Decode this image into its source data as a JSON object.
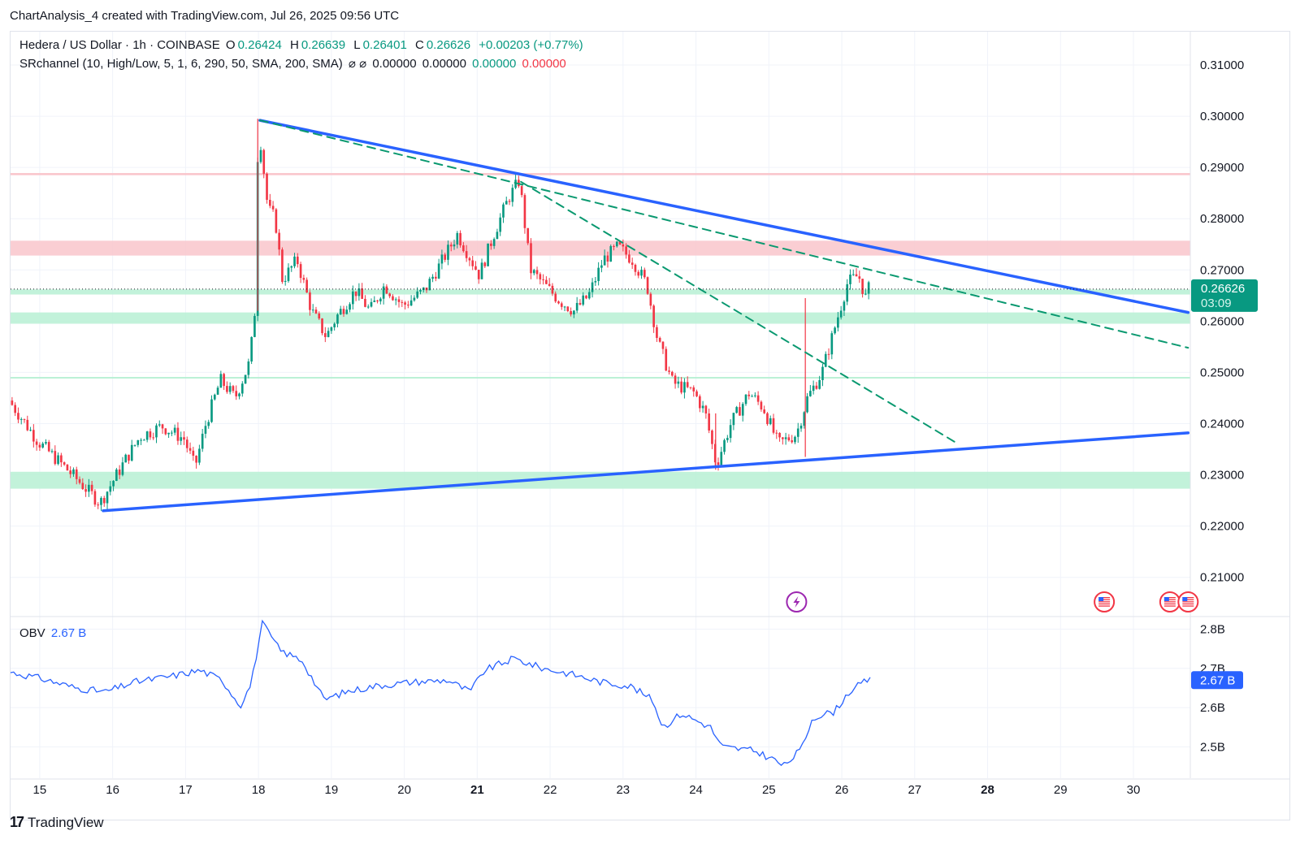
{
  "header": {
    "caption": "ChartAnalysis_4 created with TradingView.com, Jul 26, 2025 09:56 UTC"
  },
  "legend": {
    "symbol": "Hedera / US Dollar · 1h · COINBASE",
    "o_label": "O",
    "o_value": "0.26424",
    "h_label": "H",
    "h_value": "0.26639",
    "l_label": "L",
    "l_value": "0.26401",
    "c_label": "C",
    "c_value": "0.26626",
    "change": "+0.00203 (+0.77%)",
    "indicator": "SRchannel (10, High/Low, 5, 1, 6, 290, 50, SMA, 200, SMA)",
    "indicator_icons": "⌀ ⌀",
    "ind_v1": "0.00000",
    "ind_v2": "0.00000",
    "ind_v3": "0.00000",
    "ind_v4": "0.00000"
  },
  "obv_legend": {
    "label": "OBV",
    "value": "2.67 B"
  },
  "price_badge": {
    "price": "0.26626",
    "countdown": "03:09"
  },
  "obv_badge": {
    "value": "2.67 B"
  },
  "footer": {
    "brand": "TradingView",
    "mark": "17"
  },
  "colors": {
    "up": "#089981",
    "down": "#f23645",
    "trendline": "#2962ff",
    "dashed": "#0a9970",
    "resistance_zone": "#f9c5cb",
    "support_zone": "#b7f0d3",
    "obv_line": "#2962ff",
    "badge": "#089981"
  },
  "chart_data": {
    "type": "candlestick",
    "symbol": "Hedera / US Dollar",
    "interval": "1h",
    "exchange": "COINBASE",
    "price_axis_ticks": [
      "0.31000",
      "0.30000",
      "0.29000",
      "0.28000",
      "0.27000",
      "0.26000",
      "0.25000",
      "0.24000",
      "0.23000",
      "0.22000",
      "0.21000"
    ],
    "price_range": [
      0.2025,
      0.3165
    ],
    "time_axis_ticks": [
      {
        "label": "15",
        "day": 15,
        "bold": false
      },
      {
        "label": "16",
        "day": 16,
        "bold": false
      },
      {
        "label": "17",
        "day": 17,
        "bold": false
      },
      {
        "label": "18",
        "day": 18,
        "bold": false
      },
      {
        "label": "19",
        "day": 19,
        "bold": false
      },
      {
        "label": "20",
        "day": 20,
        "bold": false
      },
      {
        "label": "21",
        "day": 21,
        "bold": true
      },
      {
        "label": "22",
        "day": 22,
        "bold": false
      },
      {
        "label": "23",
        "day": 23,
        "bold": false
      },
      {
        "label": "24",
        "day": 24,
        "bold": false
      },
      {
        "label": "25",
        "day": 25,
        "bold": false
      },
      {
        "label": "26",
        "day": 26,
        "bold": false
      },
      {
        "label": "27",
        "day": 27,
        "bold": false
      },
      {
        "label": "28",
        "day": 28,
        "bold": true
      },
      {
        "label": "29",
        "day": 29,
        "bold": false
      },
      {
        "label": "30",
        "day": 30,
        "bold": false
      }
    ],
    "day_range": [
      14.6,
      30.78
    ],
    "price_path_anchors": [
      [
        14.6,
        0.2445
      ],
      [
        15.0,
        0.2365
      ],
      [
        15.4,
        0.231
      ],
      [
        15.85,
        0.2245
      ],
      [
        16.2,
        0.233
      ],
      [
        16.4,
        0.2375
      ],
      [
        16.7,
        0.2395
      ],
      [
        17.0,
        0.237
      ],
      [
        17.15,
        0.2315
      ],
      [
        17.3,
        0.24
      ],
      [
        17.5,
        0.2485
      ],
      [
        17.7,
        0.245
      ],
      [
        17.9,
        0.252
      ],
      [
        17.97,
        0.262
      ],
      [
        18.02,
        0.299
      ],
      [
        18.15,
        0.282
      ],
      [
        18.25,
        0.28
      ],
      [
        18.35,
        0.268
      ],
      [
        18.55,
        0.272
      ],
      [
        18.75,
        0.262
      ],
      [
        18.95,
        0.257
      ],
      [
        19.1,
        0.261
      ],
      [
        19.35,
        0.266
      ],
      [
        19.55,
        0.262
      ],
      [
        19.75,
        0.267
      ],
      [
        20.0,
        0.263
      ],
      [
        20.3,
        0.266
      ],
      [
        20.55,
        0.272
      ],
      [
        20.75,
        0.277
      ],
      [
        20.9,
        0.273
      ],
      [
        21.05,
        0.269
      ],
      [
        21.25,
        0.277
      ],
      [
        21.45,
        0.284
      ],
      [
        21.6,
        0.2875
      ],
      [
        21.75,
        0.27
      ],
      [
        21.95,
        0.267
      ],
      [
        22.15,
        0.264
      ],
      [
        22.35,
        0.262
      ],
      [
        22.55,
        0.265
      ],
      [
        22.75,
        0.272
      ],
      [
        22.95,
        0.2745
      ],
      [
        23.15,
        0.272
      ],
      [
        23.35,
        0.267
      ],
      [
        23.5,
        0.256
      ],
      [
        23.7,
        0.248
      ],
      [
        24.0,
        0.246
      ],
      [
        24.15,
        0.242
      ],
      [
        24.3,
        0.232
      ],
      [
        24.5,
        0.24
      ],
      [
        24.75,
        0.246
      ],
      [
        24.95,
        0.243
      ],
      [
        25.15,
        0.236
      ],
      [
        25.4,
        0.238
      ],
      [
        25.55,
        0.245
      ],
      [
        25.75,
        0.25
      ],
      [
        25.95,
        0.26
      ],
      [
        26.1,
        0.2675
      ],
      [
        26.25,
        0.269
      ],
      [
        26.35,
        0.2645
      ],
      [
        26.39,
        0.2663
      ]
    ],
    "candle_count": 280,
    "spike_candles": [
      {
        "day": 25.5,
        "low": 0.2335,
        "high": 0.2645
      },
      {
        "day": 17.99,
        "low": 0.262,
        "high": 0.2995
      },
      {
        "day": 24.27,
        "low": 0.231,
        "high": 0.242
      }
    ],
    "trendlines": [
      {
        "style": "solid",
        "from": [
          18.02,
          0.2992
        ],
        "to": [
          30.75,
          0.2617
        ]
      },
      {
        "style": "solid",
        "from": [
          15.87,
          0.223
        ],
        "to": [
          30.75,
          0.2382
        ]
      },
      {
        "style": "dashed",
        "from": [
          18.02,
          0.2992
        ],
        "to": [
          30.75,
          0.2548
        ]
      },
      {
        "style": "dashed",
        "from": [
          21.6,
          0.2872
        ],
        "to": [
          27.6,
          0.236
        ]
      }
    ],
    "zones": [
      {
        "kind": "resistance",
        "low": 0.2728,
        "high": 0.2757
      },
      {
        "kind": "resistance_line",
        "low": 0.2885,
        "high": 0.2889
      },
      {
        "kind": "support",
        "low": 0.2652,
        "high": 0.2662
      },
      {
        "kind": "support",
        "low": 0.2595,
        "high": 0.2617
      },
      {
        "kind": "support_line",
        "low": 0.2488,
        "high": 0.2491
      },
      {
        "kind": "support",
        "low": 0.2273,
        "high": 0.2306
      }
    ],
    "last_price": 0.26626,
    "obv_axis_ticks": [
      "2.8B",
      "2.7B",
      "2.6B",
      "2.5B"
    ],
    "obv_range": [
      2.42,
      2.83
    ],
    "obv_anchors": [
      [
        14.6,
        2.69
      ],
      [
        15.0,
        2.675
      ],
      [
        15.5,
        2.65
      ],
      [
        15.9,
        2.64
      ],
      [
        16.3,
        2.665
      ],
      [
        16.8,
        2.68
      ],
      [
        17.2,
        2.695
      ],
      [
        17.5,
        2.67
      ],
      [
        17.75,
        2.605
      ],
      [
        17.9,
        2.66
      ],
      [
        18.05,
        2.815
      ],
      [
        18.3,
        2.745
      ],
      [
        18.6,
        2.72
      ],
      [
        18.9,
        2.62
      ],
      [
        19.2,
        2.64
      ],
      [
        19.6,
        2.655
      ],
      [
        20.1,
        2.665
      ],
      [
        20.6,
        2.67
      ],
      [
        20.9,
        2.64
      ],
      [
        21.1,
        2.695
      ],
      [
        21.5,
        2.725
      ],
      [
        21.9,
        2.7
      ],
      [
        22.3,
        2.685
      ],
      [
        22.7,
        2.665
      ],
      [
        23.1,
        2.655
      ],
      [
        23.4,
        2.62
      ],
      [
        23.55,
        2.55
      ],
      [
        23.8,
        2.585
      ],
      [
        24.2,
        2.55
      ],
      [
        24.35,
        2.5
      ],
      [
        24.8,
        2.49
      ],
      [
        25.1,
        2.465
      ],
      [
        25.2,
        2.45
      ],
      [
        25.45,
        2.495
      ],
      [
        25.6,
        2.575
      ],
      [
        25.9,
        2.59
      ],
      [
        26.1,
        2.64
      ],
      [
        26.35,
        2.67
      ],
      [
        26.39,
        2.67
      ]
    ],
    "event_markers": [
      {
        "type": "lightning",
        "day": 25.38,
        "color": "#9c27b0"
      },
      {
        "type": "us-flag",
        "day": 29.6,
        "color": "#f23645"
      },
      {
        "type": "us-flag",
        "day": 30.5,
        "color": "#f23645"
      },
      {
        "type": "us-flag",
        "day": 30.75,
        "color": "#f23645"
      }
    ]
  }
}
